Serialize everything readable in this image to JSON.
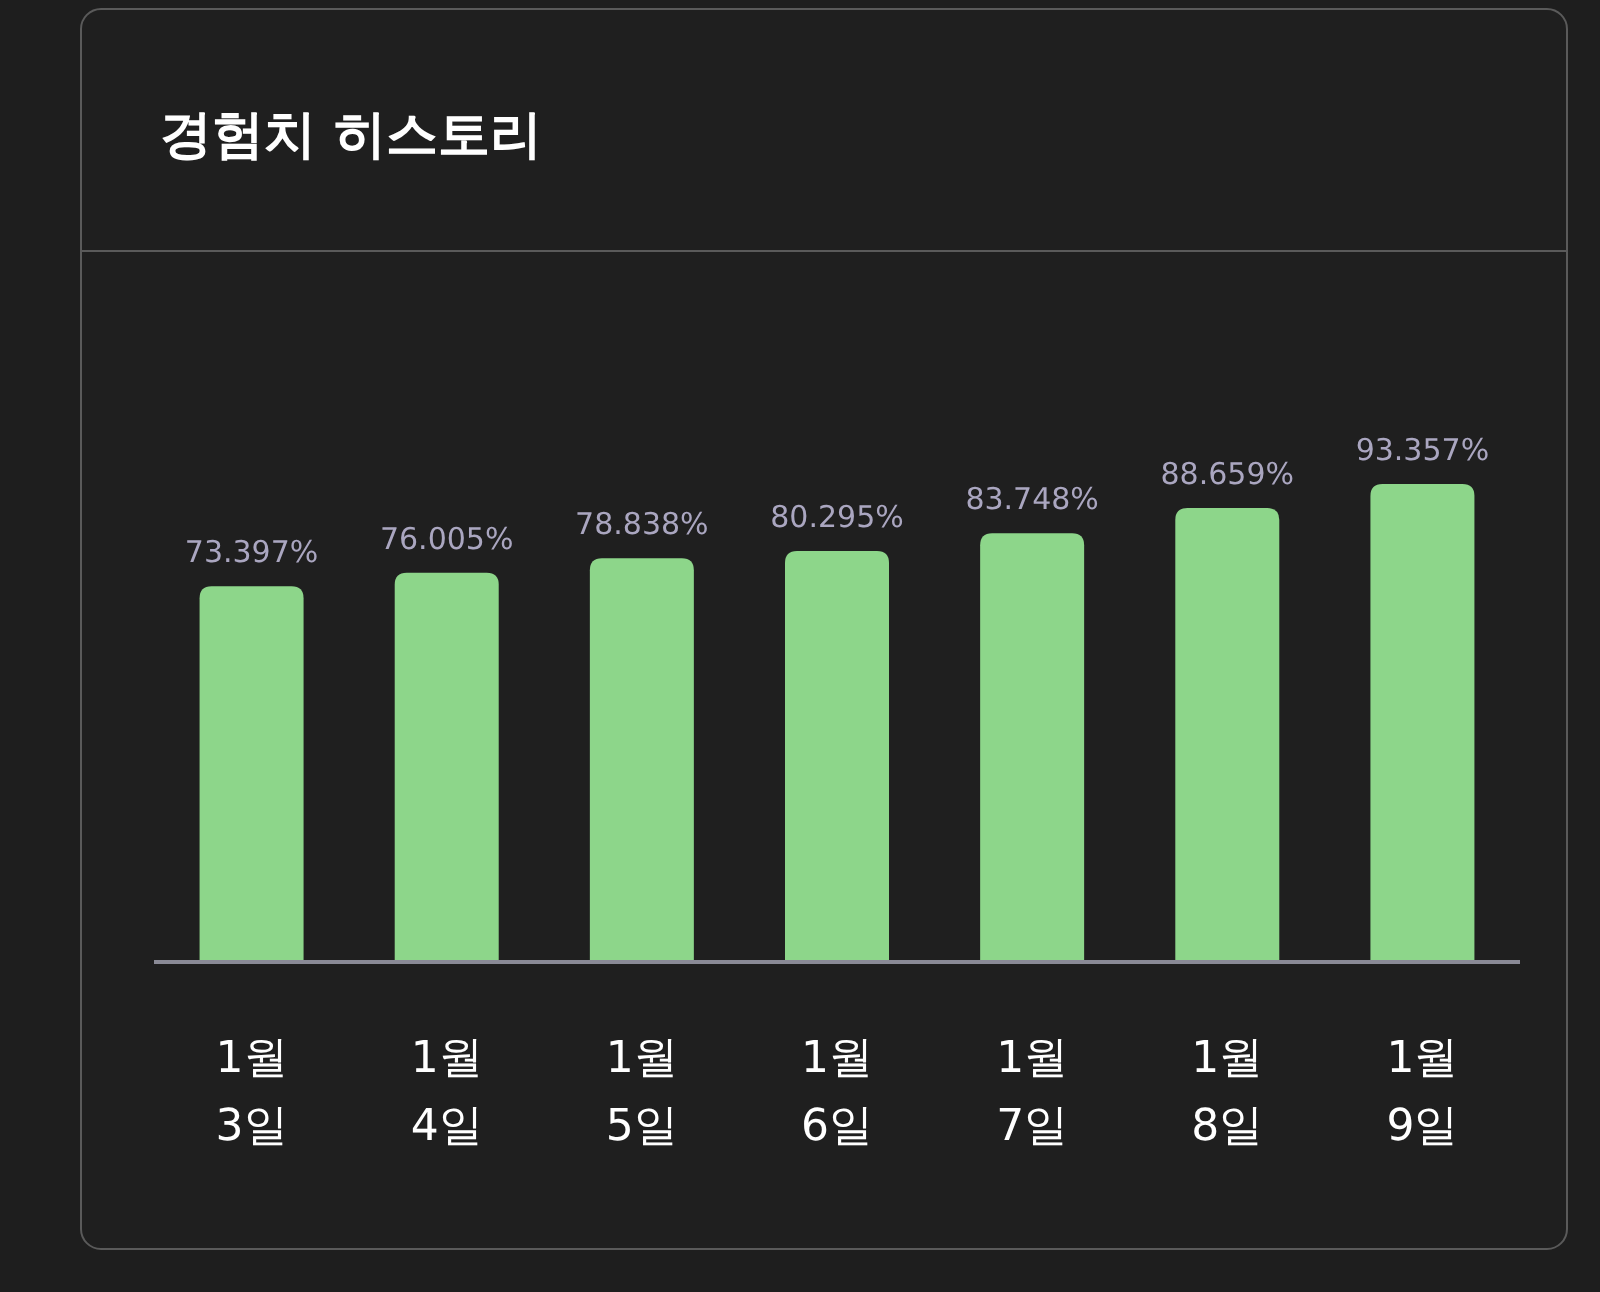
{
  "chart_data": {
    "type": "bar",
    "title": "경험치 히스토리",
    "categories": [
      "1월\n3일",
      "1월\n4일",
      "1월\n5일",
      "1월\n6일",
      "1월\n7일",
      "1월\n8일",
      "1월\n9일"
    ],
    "values": [
      73.397,
      76.005,
      78.838,
      80.295,
      83.748,
      88.659,
      93.357
    ],
    "value_labels": [
      "73.397%",
      "76.005%",
      "78.838%",
      "80.295%",
      "83.748%",
      "88.659%",
      "93.357%"
    ],
    "color": "#8dd68a"
  }
}
